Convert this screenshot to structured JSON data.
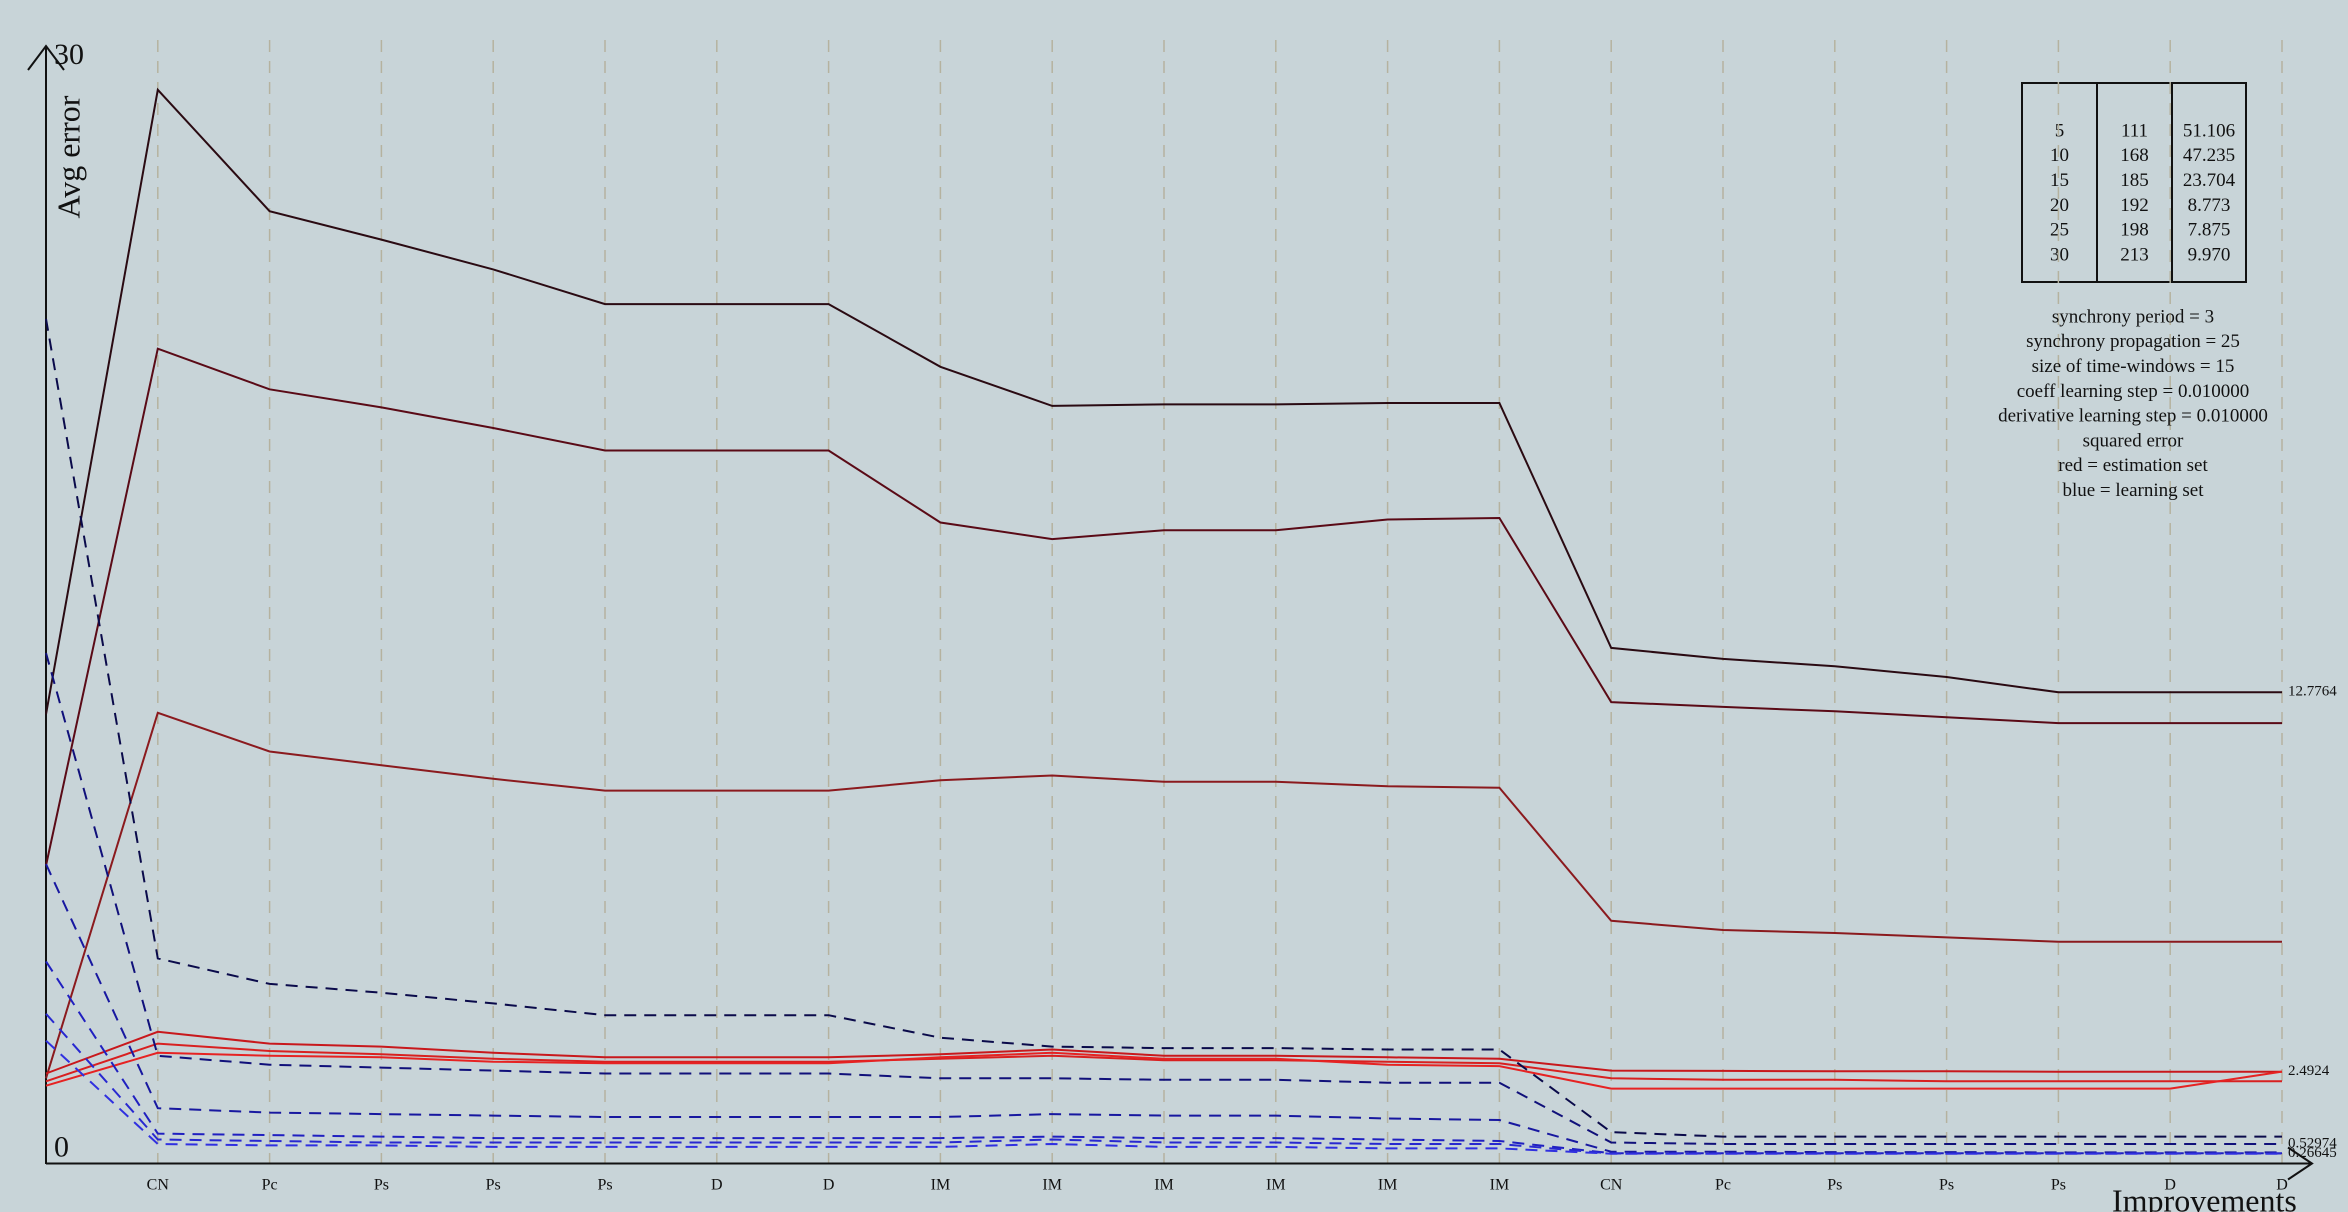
{
  "chart_data": {
    "type": "line",
    "y_label": "Avg error",
    "x_label": "Improvements",
    "categories": [
      null,
      "CN",
      "Pc",
      "Ps",
      "Ps",
      "Ps",
      "D",
      "D",
      "IM",
      "IM",
      "IM",
      "IM",
      "IM",
      "IM",
      "CN",
      "Pc",
      "Ps",
      "Ps",
      "Ps",
      "D",
      "D"
    ],
    "ylim": [
      0,
      30
    ],
    "yticks": [
      0,
      30
    ],
    "grid": true,
    "series": [
      {
        "color": "#2a0a12",
        "dash": false,
        "label_last": true,
        "values": [
          12.18,
          29.11,
          25.82,
          25.05,
          24.24,
          23.3,
          23.3,
          23.3,
          21.6,
          20.54,
          20.58,
          20.58,
          20.62,
          20.62,
          13.98,
          13.68,
          13.48,
          13.19,
          12.7764,
          12.7764,
          12.7764
        ]
      },
      {
        "color": "#5a0a16",
        "dash": false,
        "label_last": false,
        "values": [
          8.08,
          22.09,
          20.99,
          20.5,
          19.94,
          19.33,
          19.33,
          19.33,
          17.38,
          16.93,
          17.17,
          17.17,
          17.46,
          17.5,
          12.51,
          12.38,
          12.26,
          12.1,
          11.94,
          11.94,
          11.94
        ]
      },
      {
        "color": "#8b1a1e",
        "dash": false,
        "label_last": false,
        "values": [
          2.31,
          12.22,
          11.17,
          10.8,
          10.43,
          10.11,
          10.11,
          10.11,
          10.39,
          10.52,
          10.35,
          10.35,
          10.23,
          10.19,
          6.58,
          6.33,
          6.25,
          6.13,
          6.01,
          6.01,
          6.01
        ]
      },
      {
        "color": "#c8181c",
        "dash": false,
        "label_last": false,
        "values": [
          2.44,
          3.57,
          3.25,
          3.17,
          3.0,
          2.88,
          2.88,
          2.88,
          2.96,
          3.09,
          2.92,
          2.92,
          2.88,
          2.84,
          2.52,
          2.51,
          2.5,
          2.5,
          2.49,
          2.49,
          2.49
        ]
      },
      {
        "color": "#d82020",
        "dash": false,
        "label_last": false,
        "values": [
          2.23,
          3.25,
          3.05,
          2.96,
          2.84,
          2.76,
          2.76,
          2.76,
          2.84,
          2.92,
          2.8,
          2.8,
          2.76,
          2.72,
          2.31,
          2.27,
          2.27,
          2.23,
          2.23,
          2.23,
          2.23
        ]
      },
      {
        "color": "#e62222",
        "dash": false,
        "label_last": true,
        "values": [
          2.11,
          3.0,
          2.92,
          2.88,
          2.76,
          2.72,
          2.72,
          2.72,
          2.88,
          3.0,
          2.84,
          2.84,
          2.68,
          2.64,
          2.03,
          2.03,
          2.03,
          2.03,
          2.03,
          2.03,
          2.4924
        ]
      },
      {
        "color": "#0a0a4a",
        "dash": true,
        "label_last": false,
        "values": [
          22.9,
          5.56,
          4.87,
          4.63,
          4.34,
          4.02,
          4.02,
          4.02,
          3.41,
          3.17,
          3.13,
          3.13,
          3.09,
          3.09,
          0.85,
          0.73,
          0.73,
          0.73,
          0.73,
          0.73,
          0.73
        ]
      },
      {
        "color": "#10107a",
        "dash": true,
        "label_last": true,
        "values": [
          13.84,
          2.92,
          2.68,
          2.6,
          2.52,
          2.44,
          2.44,
          2.44,
          2.31,
          2.31,
          2.27,
          2.27,
          2.19,
          2.19,
          0.57,
          0.53,
          0.53,
          0.53,
          0.53,
          0.53,
          0.52974
        ]
      },
      {
        "color": "#1818a0",
        "dash": true,
        "label_last": false,
        "values": [
          8.12,
          1.5,
          1.38,
          1.34,
          1.3,
          1.26,
          1.26,
          1.26,
          1.26,
          1.34,
          1.3,
          1.3,
          1.22,
          1.18,
          0.32,
          0.32,
          0.31,
          0.31,
          0.3,
          0.3,
          0.3
        ]
      },
      {
        "color": "#2020c0",
        "dash": true,
        "label_last": false,
        "values": [
          5.48,
          0.81,
          0.77,
          0.73,
          0.69,
          0.69,
          0.69,
          0.69,
          0.69,
          0.73,
          0.69,
          0.69,
          0.65,
          0.61,
          0.28,
          0.28,
          0.28,
          0.28,
          0.28,
          0.28,
          0.28
        ]
      },
      {
        "color": "#2828d0",
        "dash": true,
        "label_last": false,
        "values": [
          4.06,
          0.65,
          0.61,
          0.57,
          0.57,
          0.57,
          0.57,
          0.57,
          0.57,
          0.65,
          0.57,
          0.57,
          0.53,
          0.53,
          0.27,
          0.27,
          0.27,
          0.27,
          0.27,
          0.27,
          0.27
        ]
      },
      {
        "color": "#3030e0",
        "dash": true,
        "label_last": true,
        "values": [
          3.33,
          0.53,
          0.49,
          0.49,
          0.45,
          0.45,
          0.45,
          0.45,
          0.45,
          0.53,
          0.45,
          0.45,
          0.41,
          0.41,
          0.26645,
          0.26645,
          0.26645,
          0.26645,
          0.26645,
          0.26645,
          0.26645
        ]
      }
    ]
  },
  "table": {
    "rows": [
      [
        "5",
        "111",
        "51.106"
      ],
      [
        "10",
        "168",
        "47.235"
      ],
      [
        "15",
        "185",
        "23.704"
      ],
      [
        "20",
        "192",
        "8.773"
      ],
      [
        "25",
        "198",
        "7.875"
      ],
      [
        "30",
        "213",
        "9.970"
      ]
    ]
  },
  "notes": [
    "synchrony period = 3",
    "synchrony propagation = 25",
    "size of time-windows = 15",
    "coeff learning step = 0.010000",
    "derivative learning step = 0.010000",
    "squared error",
    "red = estimation set",
    "blue = learning set"
  ]
}
